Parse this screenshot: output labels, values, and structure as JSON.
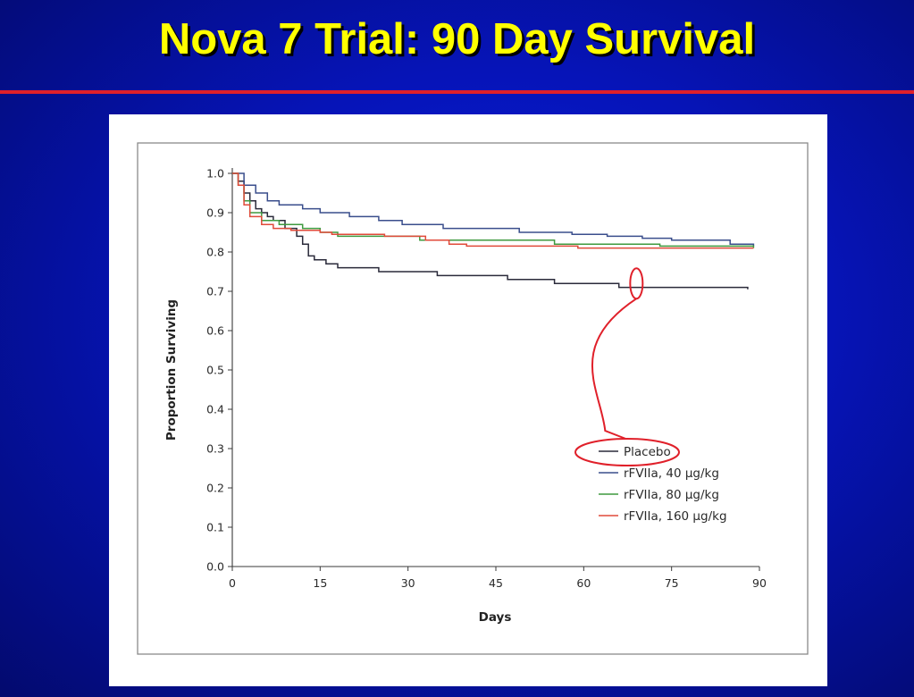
{
  "slide": {
    "title": "Nova 7 Trial: 90 Day Survival",
    "accent_color": "#e0202a",
    "title_color": "#ffff00",
    "background_color": "#0614b8"
  },
  "chart_data": {
    "type": "line",
    "step": true,
    "xlabel": "Days",
    "ylabel": "Proportion Surviving",
    "xlim": [
      0,
      90
    ],
    "ylim": [
      0.0,
      1.0
    ],
    "x_ticks": [
      0,
      15,
      30,
      45,
      60,
      75,
      90
    ],
    "y_ticks": [
      "0.0",
      "0.1",
      "0.2",
      "0.3",
      "0.4",
      "0.5",
      "0.6",
      "0.7",
      "0.8",
      "0.9",
      "1.0"
    ],
    "grid": false,
    "legend_placement": "lower-right",
    "series": [
      {
        "name": "Placebo",
        "color": "#2a2a3a",
        "points": [
          [
            0,
            1.0
          ],
          [
            1,
            0.98
          ],
          [
            2,
            0.95
          ],
          [
            3,
            0.93
          ],
          [
            4,
            0.91
          ],
          [
            5,
            0.9
          ],
          [
            6,
            0.89
          ],
          [
            7,
            0.88
          ],
          [
            9,
            0.86
          ],
          [
            11,
            0.84
          ],
          [
            12,
            0.82
          ],
          [
            13,
            0.79
          ],
          [
            14,
            0.78
          ],
          [
            16,
            0.77
          ],
          [
            18,
            0.76
          ],
          [
            25,
            0.75
          ],
          [
            35,
            0.74
          ],
          [
            42,
            0.74
          ],
          [
            47,
            0.73
          ],
          [
            55,
            0.72
          ],
          [
            63,
            0.72
          ],
          [
            66,
            0.71
          ],
          [
            80,
            0.71
          ],
          [
            88,
            0.705
          ]
        ]
      },
      {
        "name": "rFVIIa, 40 μg/kg",
        "color": "#3a4e8c",
        "points": [
          [
            0,
            1.0
          ],
          [
            2,
            0.97
          ],
          [
            4,
            0.95
          ],
          [
            6,
            0.93
          ],
          [
            8,
            0.92
          ],
          [
            12,
            0.91
          ],
          [
            15,
            0.9
          ],
          [
            20,
            0.89
          ],
          [
            25,
            0.88
          ],
          [
            29,
            0.87
          ],
          [
            36,
            0.86
          ],
          [
            44,
            0.86
          ],
          [
            49,
            0.85
          ],
          [
            58,
            0.845
          ],
          [
            64,
            0.84
          ],
          [
            70,
            0.835
          ],
          [
            75,
            0.83
          ],
          [
            85,
            0.82
          ],
          [
            89,
            0.815
          ]
        ]
      },
      {
        "name": "rFVIIa, 80 μg/kg",
        "color": "#3f9a3f",
        "points": [
          [
            0,
            1.0
          ],
          [
            1,
            0.97
          ],
          [
            2,
            0.93
          ],
          [
            3,
            0.9
          ],
          [
            5,
            0.88
          ],
          [
            8,
            0.87
          ],
          [
            12,
            0.86
          ],
          [
            15,
            0.85
          ],
          [
            18,
            0.84
          ],
          [
            28,
            0.84
          ],
          [
            32,
            0.83
          ],
          [
            48,
            0.83
          ],
          [
            55,
            0.82
          ],
          [
            70,
            0.82
          ],
          [
            73,
            0.815
          ],
          [
            89,
            0.81
          ]
        ]
      },
      {
        "name": "rFVIIa, 160 μg/kg",
        "color": "#e04a3a",
        "points": [
          [
            0,
            1.0
          ],
          [
            1,
            0.97
          ],
          [
            2,
            0.92
          ],
          [
            3,
            0.89
          ],
          [
            5,
            0.87
          ],
          [
            7,
            0.86
          ],
          [
            10,
            0.855
          ],
          [
            15,
            0.85
          ],
          [
            17,
            0.845
          ],
          [
            26,
            0.84
          ],
          [
            33,
            0.83
          ],
          [
            37,
            0.82
          ],
          [
            40,
            0.815
          ],
          [
            59,
            0.81
          ],
          [
            89,
            0.81
          ]
        ]
      }
    ],
    "annotation": {
      "type": "callout",
      "color": "#e0202a",
      "target_series": "Placebo",
      "target_point": [
        69,
        0.72
      ]
    }
  }
}
